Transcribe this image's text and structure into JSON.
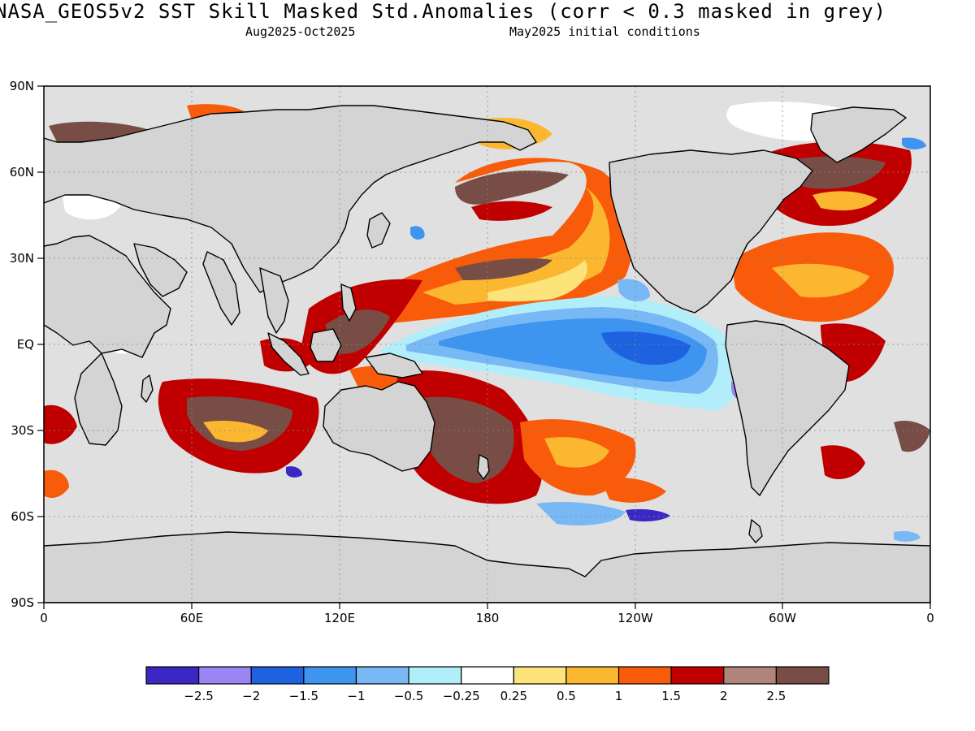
{
  "header": {
    "title": "NASA_GEOS5v2  SST Skill Masked Std.Anomalies (corr < 0.3 masked in grey)",
    "period": "Aug2025-Oct2025",
    "initial_conditions": "May2025 initial conditions"
  },
  "map": {
    "lat_ticks": [
      "90N",
      "60N",
      "30N",
      "EQ",
      "30S",
      "60S",
      "90S"
    ],
    "lon_ticks": [
      "0",
      "60E",
      "120E",
      "180",
      "120W",
      "60W",
      "0"
    ],
    "mask_color": "#e0e0e0",
    "land_color": "#d4d4d4"
  },
  "colorbar": {
    "labels": [
      "-2.5",
      "-2",
      "-1.5",
      "-1",
      "-0.5",
      "-0.25",
      "0.25",
      "0.5",
      "1",
      "1.5",
      "2",
      "2.5"
    ],
    "colors": [
      "#3b28c4",
      "#9b85f4",
      "#1e62e0",
      "#3d95f0",
      "#77b8f5",
      "#b2eefa",
      "#ffffff",
      "#fde47a",
      "#fcb730",
      "#f85c0a",
      "#c00000",
      "#b08478",
      "#784d45"
    ]
  }
}
